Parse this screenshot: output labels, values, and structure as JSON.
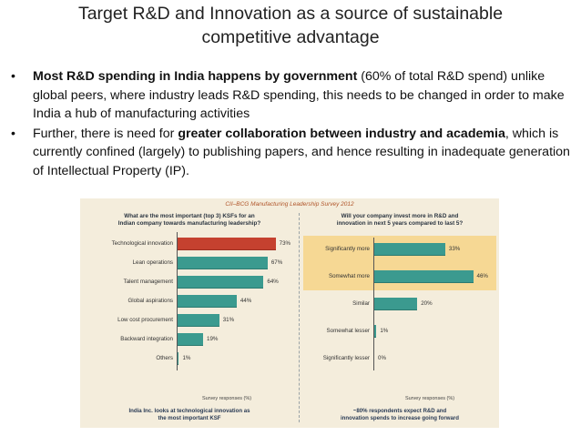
{
  "slide": {
    "title_line1": "Target R&D and Innovation as a source of sustainable",
    "title_line2": "competitive advantage",
    "bullet_symbol": "•",
    "bullets": [
      {
        "bold": "Most R&D spending in India happens by government",
        "after": " (60% of total R&D spend) unlike global peers, where industry leads R&D spending, this needs to be changed in order to make India a hub of manufacturing activities"
      },
      {
        "before": "Further, there is need for ",
        "bold": "greater collaboration between industry and academia",
        "after": ", which is currently confined (largely) to publishing papers, and hence resulting in inadequate generation of Intellectual Property (IP)."
      }
    ]
  },
  "figure": {
    "header": "CII–BCG Manufacturing Leadership Survey 2012",
    "colors": {
      "bar": "#3b9a8f",
      "highlight_bar": "#c5412f",
      "highlight_band": "#f6d894",
      "background": "#f4eddc"
    }
  },
  "chart_data": [
    {
      "type": "bar",
      "orientation": "horizontal",
      "title_line1": "What are the most important (top 3) KSFs for an",
      "title_line2": "Indian company towards manufacturing leadership?",
      "categories": [
        "Technological innovation",
        "Lean operations",
        "Talent management",
        "Global aspirations",
        "Low cost procurement",
        "Backward integration",
        "Others"
      ],
      "values": [
        73,
        67,
        64,
        44,
        31,
        19,
        1
      ],
      "value_labels": [
        "73%",
        "67%",
        "64%",
        "44%",
        "31%",
        "19%",
        "1%"
      ],
      "highlight_index": 0,
      "xlabel": "Survey responses (%)",
      "xlim": [
        0,
        80
      ],
      "footnote_line1": "India Inc. looks at technological innovation as",
      "footnote_line2": "the most important KSF"
    },
    {
      "type": "bar",
      "orientation": "horizontal",
      "title_line1": "Will your company invest more in R&D and",
      "title_line2": "innovation in next 5 years compared to last 5?",
      "categories": [
        "Significantly more",
        "Somewhat more",
        "Similar",
        "Somewhat lesser",
        "Significantly lesser"
      ],
      "values": [
        33,
        46,
        20,
        1,
        0
      ],
      "value_labels": [
        "33%",
        "46%",
        "20%",
        "1%",
        "0%"
      ],
      "highlighted_categories": [
        "Significantly more",
        "Somewhat more"
      ],
      "xlabel": "Survey responses (%)",
      "xlim": [
        0,
        50
      ],
      "footnote_line1": "~80% respondents expect R&D and",
      "footnote_line2": "innovation spends to increase going forward"
    }
  ]
}
